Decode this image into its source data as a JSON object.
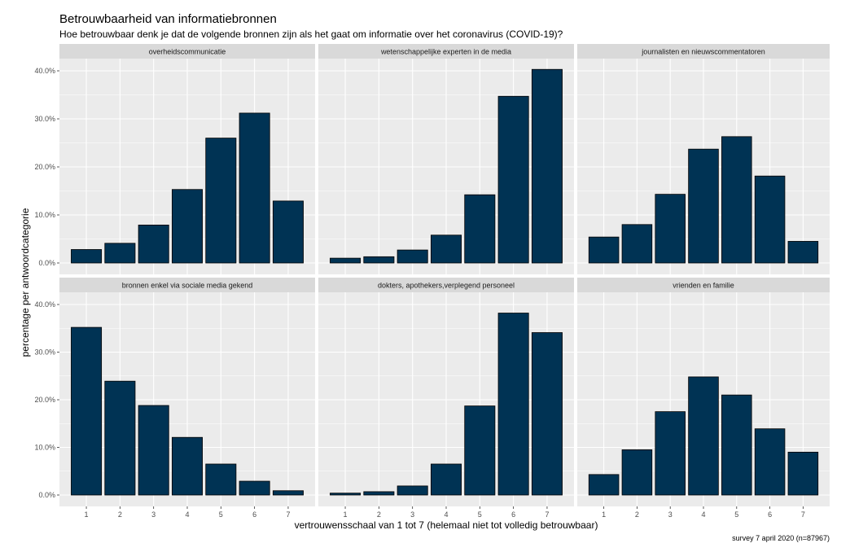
{
  "chart_data": {
    "type": "bar",
    "title": "Betrouwbaarheid van informatiebronnen",
    "subtitle": "Hoe betrouwbaar denk je dat de volgende bronnen zijn als het gaat om informatie over het coronavirus (COVID-19)?",
    "xlabel": "vertrouwensschaal van 1 tot 7 (helemaal niet tot volledig betrouwbaar)",
    "ylabel": "percentage per antwoordcategorie",
    "caption": "survey 7 april 2020 (n=87967)",
    "categories": [
      "1",
      "2",
      "3",
      "4",
      "5",
      "6",
      "7"
    ],
    "ylim": [
      0,
      42
    ],
    "yticks": [
      0,
      10,
      20,
      30,
      40
    ],
    "ytick_labels": [
      "0.0%",
      "10.0%",
      "20.0%",
      "30.0%",
      "40.0%"
    ],
    "bar_color": "#003354",
    "panel_background": "#ebebeb",
    "strip_background": "#d9d9d9",
    "grid": true,
    "panels": [
      {
        "name": "overheidscommunicatie",
        "values": [
          2.8,
          4.1,
          7.9,
          15.3,
          26.0,
          31.2,
          12.9
        ]
      },
      {
        "name": "wetenschappelijke experten in de media",
        "values": [
          1.0,
          1.3,
          2.7,
          5.8,
          14.2,
          34.7,
          40.3
        ]
      },
      {
        "name": "journalisten en nieuwscommentatoren",
        "values": [
          5.4,
          8.0,
          14.3,
          23.7,
          26.3,
          18.1,
          4.5
        ]
      },
      {
        "name": "bronnen enkel via sociale media gekend",
        "values": [
          35.2,
          23.9,
          18.8,
          12.1,
          6.5,
          2.9,
          0.9
        ]
      },
      {
        "name": "dokters, apothekers,verplegend personeel",
        "values": [
          0.4,
          0.7,
          1.9,
          6.5,
          18.7,
          38.2,
          34.1
        ]
      },
      {
        "name": "vrienden en familie",
        "values": [
          4.3,
          9.5,
          17.5,
          24.8,
          21.0,
          13.9,
          9.0
        ]
      }
    ]
  }
}
